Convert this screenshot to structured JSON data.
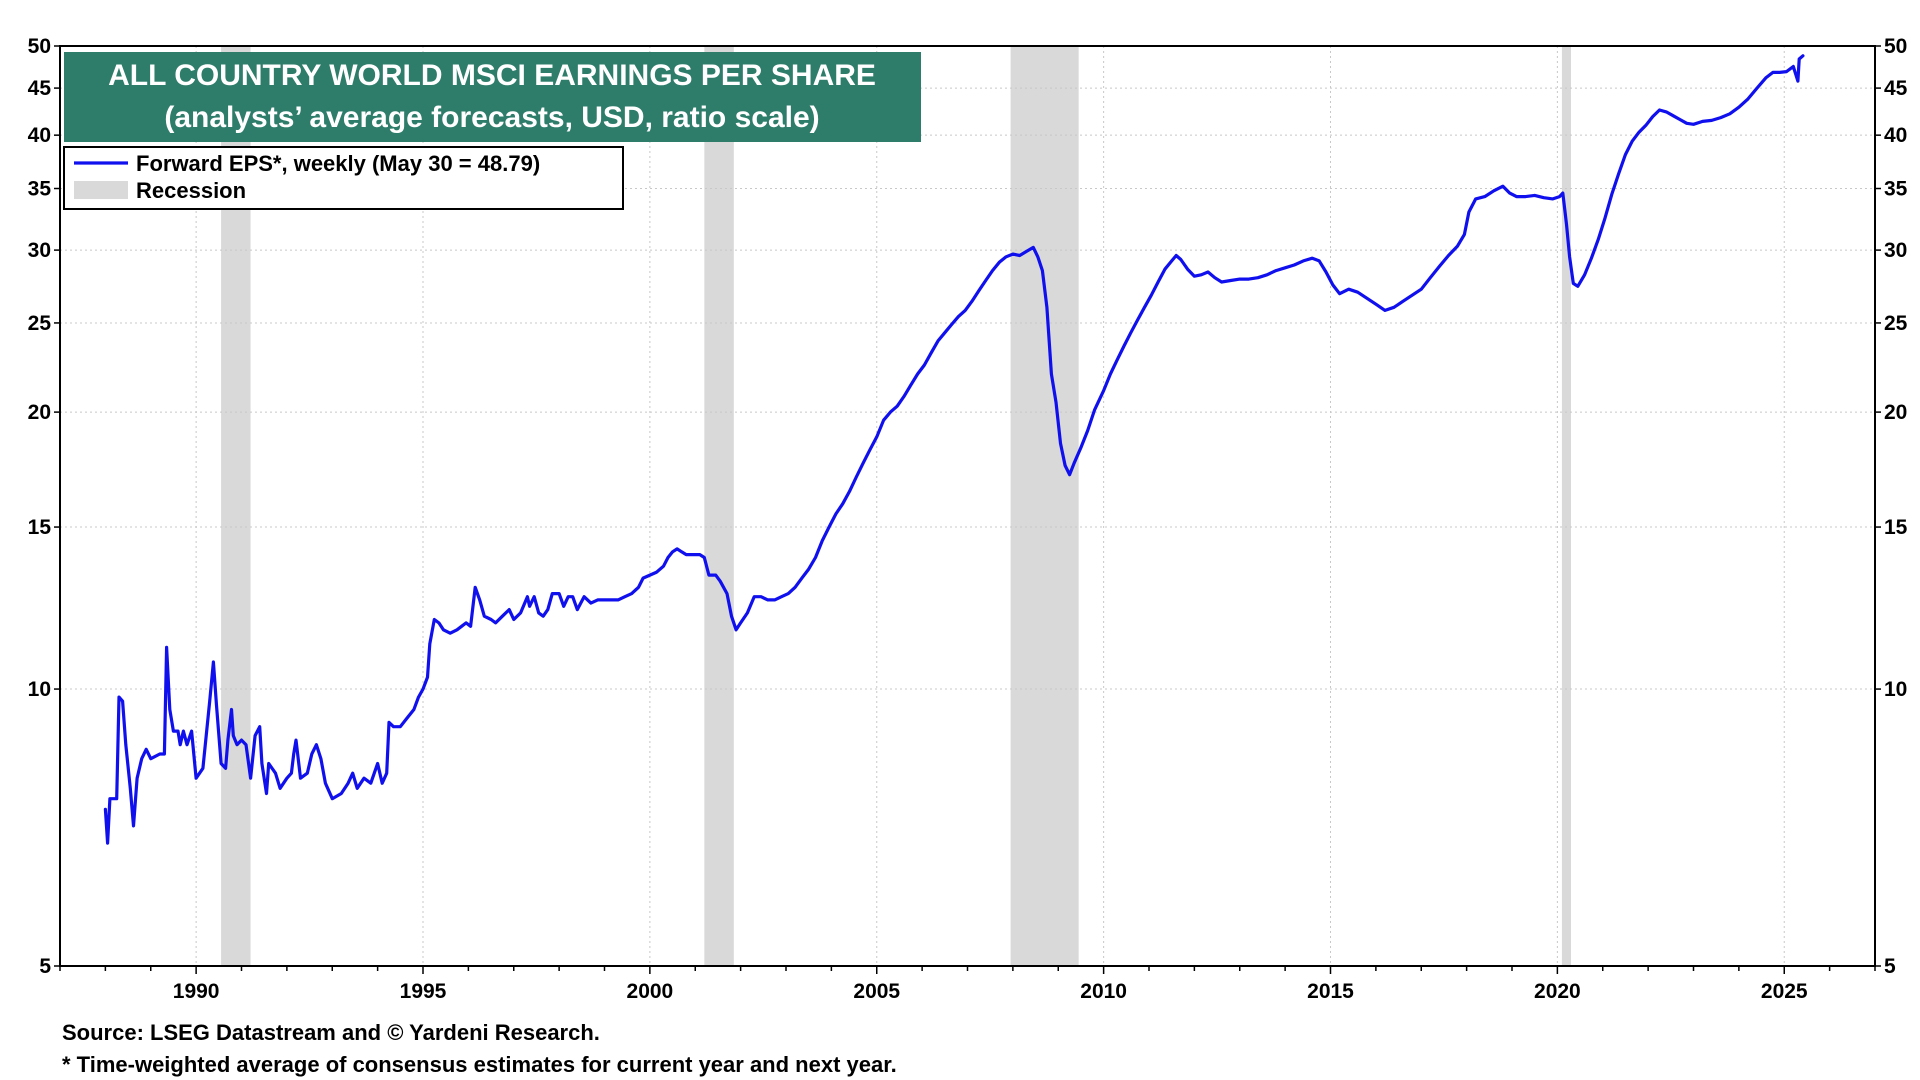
{
  "chart_data": {
    "type": "line",
    "title": "ALL COUNTRY WORLD MSCI EARNINGS PER SHARE",
    "subtitle": "(analysts’ average forecasts, USD, ratio scale)",
    "y_scale": "log",
    "ylim": [
      5,
      50
    ],
    "xlim": [
      1987.0,
      2027.0
    ],
    "y_ticks": [
      5,
      10,
      15,
      20,
      25,
      30,
      35,
      40,
      45,
      50
    ],
    "y_tick_labels": [
      "5",
      "10",
      "15",
      "20",
      "25",
      "30",
      "35",
      "40",
      "45",
      "50"
    ],
    "x_ticks": [
      1990,
      1995,
      2000,
      2005,
      2010,
      2015,
      2020,
      2025
    ],
    "x_tick_labels": [
      "1990",
      "1995",
      "2000",
      "2005",
      "2010",
      "2015",
      "2020",
      "2025"
    ],
    "grid": true,
    "legend": {
      "placement": "top-left",
      "series_label": "Forward EPS*, weekly (May 30 = 48.79)",
      "recession_label": "Recession"
    },
    "recessions": [
      {
        "start": 1990.55,
        "end": 1991.2
      },
      {
        "start": 2001.2,
        "end": 2001.85
      },
      {
        "start": 2007.95,
        "end": 2009.45
      },
      {
        "start": 2020.1,
        "end": 2020.3
      }
    ],
    "series": [
      {
        "name": "Forward EPS*, weekly",
        "color": "#1010ee",
        "points": [
          [
            1988.0,
            7.4
          ],
          [
            1988.05,
            6.8
          ],
          [
            1988.1,
            7.6
          ],
          [
            1988.25,
            7.6
          ],
          [
            1988.3,
            9.8
          ],
          [
            1988.38,
            9.7
          ],
          [
            1988.45,
            8.7
          ],
          [
            1988.55,
            7.8
          ],
          [
            1988.62,
            7.1
          ],
          [
            1988.7,
            8.0
          ],
          [
            1988.8,
            8.4
          ],
          [
            1988.9,
            8.6
          ],
          [
            1989.0,
            8.4
          ],
          [
            1989.2,
            8.5
          ],
          [
            1989.3,
            8.5
          ],
          [
            1989.35,
            11.1
          ],
          [
            1989.42,
            9.5
          ],
          [
            1989.5,
            9.0
          ],
          [
            1989.6,
            9.0
          ],
          [
            1989.65,
            8.7
          ],
          [
            1989.72,
            9.0
          ],
          [
            1989.8,
            8.7
          ],
          [
            1989.9,
            9.0
          ],
          [
            1990.0,
            8.0
          ],
          [
            1990.15,
            8.2
          ],
          [
            1990.3,
            9.7
          ],
          [
            1990.38,
            10.7
          ],
          [
            1990.45,
            9.6
          ],
          [
            1990.55,
            8.3
          ],
          [
            1990.65,
            8.2
          ],
          [
            1990.7,
            8.8
          ],
          [
            1990.78,
            9.5
          ],
          [
            1990.82,
            8.9
          ],
          [
            1990.9,
            8.7
          ],
          [
            1991.0,
            8.8
          ],
          [
            1991.1,
            8.7
          ],
          [
            1991.2,
            8.0
          ],
          [
            1991.3,
            8.9
          ],
          [
            1991.4,
            9.1
          ],
          [
            1991.45,
            8.3
          ],
          [
            1991.55,
            7.7
          ],
          [
            1991.6,
            8.3
          ],
          [
            1991.75,
            8.1
          ],
          [
            1991.85,
            7.8
          ],
          [
            1992.0,
            8.0
          ],
          [
            1992.1,
            8.1
          ],
          [
            1992.15,
            8.5
          ],
          [
            1992.2,
            8.8
          ],
          [
            1992.3,
            8.0
          ],
          [
            1992.45,
            8.1
          ],
          [
            1992.55,
            8.5
          ],
          [
            1992.65,
            8.7
          ],
          [
            1992.75,
            8.4
          ],
          [
            1992.85,
            7.9
          ],
          [
            1993.0,
            7.6
          ],
          [
            1993.2,
            7.7
          ],
          [
            1993.35,
            7.9
          ],
          [
            1993.45,
            8.1
          ],
          [
            1993.55,
            7.8
          ],
          [
            1993.7,
            8.0
          ],
          [
            1993.85,
            7.9
          ],
          [
            1994.0,
            8.3
          ],
          [
            1994.1,
            7.9
          ],
          [
            1994.2,
            8.1
          ],
          [
            1994.25,
            9.2
          ],
          [
            1994.35,
            9.1
          ],
          [
            1994.5,
            9.1
          ],
          [
            1994.65,
            9.3
          ],
          [
            1994.8,
            9.5
          ],
          [
            1994.9,
            9.8
          ],
          [
            1995.0,
            10.0
          ],
          [
            1995.1,
            10.3
          ],
          [
            1995.15,
            11.2
          ],
          [
            1995.25,
            11.9
          ],
          [
            1995.35,
            11.8
          ],
          [
            1995.45,
            11.6
          ],
          [
            1995.6,
            11.5
          ],
          [
            1995.75,
            11.6
          ],
          [
            1995.85,
            11.7
          ],
          [
            1995.95,
            11.8
          ],
          [
            1996.05,
            11.7
          ],
          [
            1996.15,
            12.9
          ],
          [
            1996.25,
            12.5
          ],
          [
            1996.35,
            12.0
          ],
          [
            1996.5,
            11.9
          ],
          [
            1996.6,
            11.8
          ],
          [
            1996.75,
            12.0
          ],
          [
            1996.9,
            12.2
          ],
          [
            1997.0,
            11.9
          ],
          [
            1997.15,
            12.1
          ],
          [
            1997.3,
            12.6
          ],
          [
            1997.35,
            12.3
          ],
          [
            1997.45,
            12.6
          ],
          [
            1997.55,
            12.1
          ],
          [
            1997.65,
            12.0
          ],
          [
            1997.75,
            12.2
          ],
          [
            1997.85,
            12.7
          ],
          [
            1998.0,
            12.7
          ],
          [
            1998.1,
            12.3
          ],
          [
            1998.2,
            12.6
          ],
          [
            1998.3,
            12.6
          ],
          [
            1998.4,
            12.2
          ],
          [
            1998.55,
            12.6
          ],
          [
            1998.7,
            12.4
          ],
          [
            1998.85,
            12.5
          ],
          [
            1999.0,
            12.5
          ],
          [
            1999.15,
            12.5
          ],
          [
            1999.3,
            12.5
          ],
          [
            1999.45,
            12.6
          ],
          [
            1999.6,
            12.7
          ],
          [
            1999.75,
            12.9
          ],
          [
            1999.85,
            13.2
          ],
          [
            2000.0,
            13.3
          ],
          [
            2000.15,
            13.4
          ],
          [
            2000.3,
            13.6
          ],
          [
            2000.4,
            13.9
          ],
          [
            2000.5,
            14.1
          ],
          [
            2000.6,
            14.2
          ],
          [
            2000.7,
            14.1
          ],
          [
            2000.8,
            14.0
          ],
          [
            2000.95,
            14.0
          ],
          [
            2001.1,
            14.0
          ],
          [
            2001.2,
            13.9
          ],
          [
            2001.3,
            13.3
          ],
          [
            2001.45,
            13.3
          ],
          [
            2001.55,
            13.1
          ],
          [
            2001.7,
            12.7
          ],
          [
            2001.8,
            12.0
          ],
          [
            2001.9,
            11.6
          ],
          [
            2002.0,
            11.8
          ],
          [
            2002.15,
            12.1
          ],
          [
            2002.3,
            12.6
          ],
          [
            2002.45,
            12.6
          ],
          [
            2002.6,
            12.5
          ],
          [
            2002.75,
            12.5
          ],
          [
            2002.9,
            12.6
          ],
          [
            2003.05,
            12.7
          ],
          [
            2003.2,
            12.9
          ],
          [
            2003.35,
            13.2
          ],
          [
            2003.5,
            13.5
          ],
          [
            2003.65,
            13.9
          ],
          [
            2003.8,
            14.5
          ],
          [
            2003.95,
            15.0
          ],
          [
            2004.1,
            15.5
          ],
          [
            2004.25,
            15.9
          ],
          [
            2004.4,
            16.4
          ],
          [
            2004.55,
            17.0
          ],
          [
            2004.7,
            17.6
          ],
          [
            2004.85,
            18.2
          ],
          [
            2005.0,
            18.8
          ],
          [
            2005.15,
            19.6
          ],
          [
            2005.3,
            20.0
          ],
          [
            2005.45,
            20.3
          ],
          [
            2005.6,
            20.8
          ],
          [
            2005.75,
            21.4
          ],
          [
            2005.9,
            22.0
          ],
          [
            2006.05,
            22.5
          ],
          [
            2006.2,
            23.2
          ],
          [
            2006.35,
            23.9
          ],
          [
            2006.5,
            24.4
          ],
          [
            2006.65,
            24.9
          ],
          [
            2006.8,
            25.4
          ],
          [
            2006.95,
            25.8
          ],
          [
            2007.1,
            26.4
          ],
          [
            2007.25,
            27.1
          ],
          [
            2007.4,
            27.8
          ],
          [
            2007.55,
            28.5
          ],
          [
            2007.7,
            29.1
          ],
          [
            2007.85,
            29.5
          ],
          [
            2008.0,
            29.7
          ],
          [
            2008.15,
            29.6
          ],
          [
            2008.3,
            29.9
          ],
          [
            2008.45,
            30.2
          ],
          [
            2008.55,
            29.5
          ],
          [
            2008.65,
            28.5
          ],
          [
            2008.75,
            26.0
          ],
          [
            2008.85,
            22.0
          ],
          [
            2008.95,
            20.5
          ],
          [
            2009.05,
            18.5
          ],
          [
            2009.15,
            17.5
          ],
          [
            2009.25,
            17.1
          ],
          [
            2009.35,
            17.6
          ],
          [
            2009.5,
            18.3
          ],
          [
            2009.65,
            19.1
          ],
          [
            2009.8,
            20.1
          ],
          [
            2010.0,
            21.1
          ],
          [
            2010.15,
            22.0
          ],
          [
            2010.3,
            22.8
          ],
          [
            2010.45,
            23.6
          ],
          [
            2010.6,
            24.4
          ],
          [
            2010.75,
            25.2
          ],
          [
            2010.9,
            26.0
          ],
          [
            2011.05,
            26.8
          ],
          [
            2011.2,
            27.7
          ],
          [
            2011.35,
            28.6
          ],
          [
            2011.5,
            29.2
          ],
          [
            2011.6,
            29.6
          ],
          [
            2011.7,
            29.3
          ],
          [
            2011.85,
            28.6
          ],
          [
            2012.0,
            28.1
          ],
          [
            2012.15,
            28.2
          ],
          [
            2012.3,
            28.4
          ],
          [
            2012.45,
            28.0
          ],
          [
            2012.6,
            27.7
          ],
          [
            2012.8,
            27.8
          ],
          [
            2013.0,
            27.9
          ],
          [
            2013.2,
            27.9
          ],
          [
            2013.4,
            28.0
          ],
          [
            2013.6,
            28.2
          ],
          [
            2013.8,
            28.5
          ],
          [
            2014.0,
            28.7
          ],
          [
            2014.2,
            28.9
          ],
          [
            2014.4,
            29.2
          ],
          [
            2014.6,
            29.4
          ],
          [
            2014.75,
            29.2
          ],
          [
            2014.9,
            28.4
          ],
          [
            2015.05,
            27.5
          ],
          [
            2015.2,
            26.9
          ],
          [
            2015.4,
            27.2
          ],
          [
            2015.6,
            27.0
          ],
          [
            2015.8,
            26.6
          ],
          [
            2016.0,
            26.2
          ],
          [
            2016.2,
            25.8
          ],
          [
            2016.4,
            26.0
          ],
          [
            2016.6,
            26.4
          ],
          [
            2016.8,
            26.8
          ],
          [
            2017.0,
            27.2
          ],
          [
            2017.2,
            28.0
          ],
          [
            2017.4,
            28.8
          ],
          [
            2017.6,
            29.6
          ],
          [
            2017.8,
            30.3
          ],
          [
            2017.95,
            31.2
          ],
          [
            2018.05,
            33.0
          ],
          [
            2018.2,
            34.1
          ],
          [
            2018.4,
            34.3
          ],
          [
            2018.6,
            34.8
          ],
          [
            2018.8,
            35.2
          ],
          [
            2018.95,
            34.6
          ],
          [
            2019.1,
            34.3
          ],
          [
            2019.3,
            34.3
          ],
          [
            2019.5,
            34.4
          ],
          [
            2019.7,
            34.2
          ],
          [
            2019.9,
            34.1
          ],
          [
            2020.05,
            34.3
          ],
          [
            2020.12,
            34.6
          ],
          [
            2020.2,
            32.0
          ],
          [
            2020.27,
            29.5
          ],
          [
            2020.35,
            27.6
          ],
          [
            2020.45,
            27.4
          ],
          [
            2020.6,
            28.2
          ],
          [
            2020.75,
            29.4
          ],
          [
            2020.9,
            30.8
          ],
          [
            2021.05,
            32.5
          ],
          [
            2021.2,
            34.5
          ],
          [
            2021.35,
            36.3
          ],
          [
            2021.5,
            38.1
          ],
          [
            2021.65,
            39.4
          ],
          [
            2021.8,
            40.3
          ],
          [
            2021.95,
            41.0
          ],
          [
            2022.1,
            41.9
          ],
          [
            2022.25,
            42.6
          ],
          [
            2022.4,
            42.4
          ],
          [
            2022.55,
            42.0
          ],
          [
            2022.7,
            41.6
          ],
          [
            2022.85,
            41.2
          ],
          [
            2023.0,
            41.1
          ],
          [
            2023.2,
            41.4
          ],
          [
            2023.4,
            41.5
          ],
          [
            2023.6,
            41.8
          ],
          [
            2023.8,
            42.2
          ],
          [
            2024.0,
            42.9
          ],
          [
            2024.2,
            43.8
          ],
          [
            2024.4,
            45.0
          ],
          [
            2024.6,
            46.2
          ],
          [
            2024.75,
            46.8
          ],
          [
            2024.9,
            46.8
          ],
          [
            2025.05,
            46.9
          ],
          [
            2025.2,
            47.5
          ],
          [
            2025.3,
            45.8
          ],
          [
            2025.33,
            48.4
          ],
          [
            2025.41,
            48.79
          ]
        ]
      }
    ]
  },
  "footnotes": {
    "source": "Source: LSEG Datastream and © Yardeni Research.",
    "note": "* Time-weighted average of consensus estimates for current year and next year."
  },
  "colors": {
    "title_bg": "#2e7d6b",
    "line": "#1010ee",
    "recession": "#d9d9d9",
    "grid": "#c8c8c8"
  }
}
